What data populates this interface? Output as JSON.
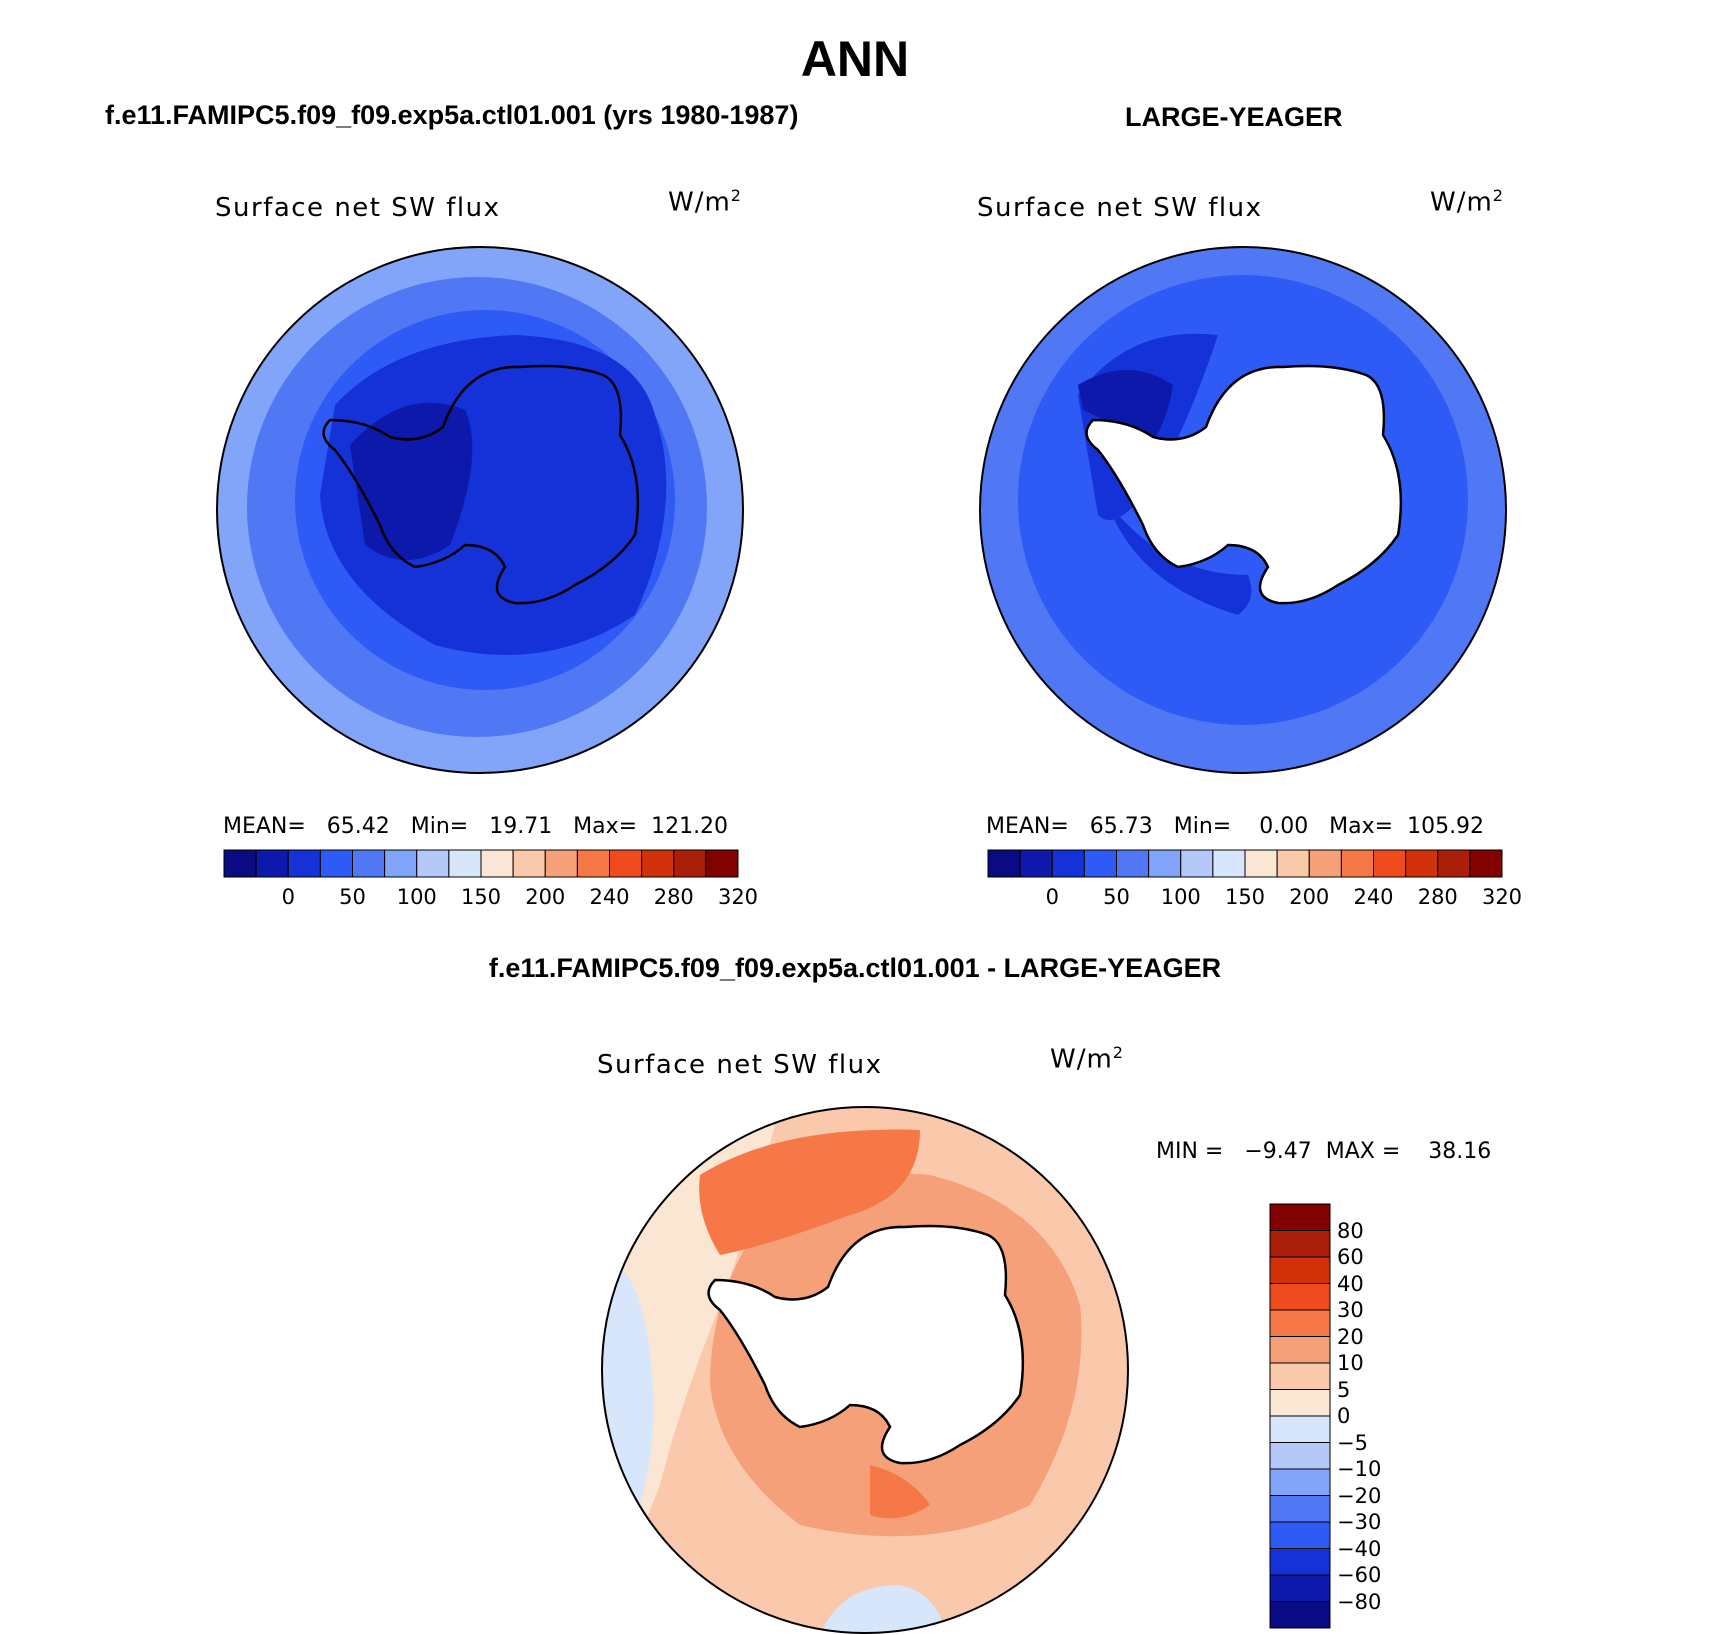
{
  "main_title": "ANN",
  "panels": [
    {
      "title": "f.e11.FAMIPC5.f09_f09.exp5a.ctl01.001 (yrs 1980-1987)",
      "variable": "Surface net SW flux",
      "units_base": "W/m",
      "units_exp": "2",
      "stats": "MEAN=   65.42   Min=   19.71   Max=  121.20",
      "colorbar_labels": [
        "0",
        "50",
        "100",
        "150",
        "200",
        "240",
        "280",
        "320"
      ]
    },
    {
      "title": "LARGE-YEAGER",
      "variable": "Surface net SW flux",
      "units_base": "W/m",
      "units_exp": "2",
      "stats": "MEAN=   65.73   Min=    0.00   Max=  105.92",
      "colorbar_labels": [
        "0",
        "50",
        "100",
        "150",
        "200",
        "240",
        "280",
        "320"
      ]
    },
    {
      "title": "f.e11.FAMIPC5.f09_f09.exp5a.ctl01.001 - LARGE-YEAGER",
      "variable": "Surface net SW flux",
      "units_base": "W/m",
      "units_exp": "2",
      "stats": "MIN =   −9.47  MAX =    38.16",
      "colorbar_labels": [
        "80",
        "60",
        "40",
        "30",
        "20",
        "10",
        "5",
        "0",
        "−5",
        "−10",
        "−20",
        "−30",
        "−40",
        "−60",
        "−80"
      ]
    }
  ],
  "colors": {
    "abs_scale": [
      "#0a0a82",
      "#0c19aa",
      "#1432d7",
      "#2e5af5",
      "#5078f5",
      "#82a5fa",
      "#b4c8fa",
      "#d7e6fa",
      "#fae6d2",
      "#fac8aa",
      "#f5a078",
      "#f57846",
      "#f04b1e",
      "#d2320a",
      "#aa1e0a",
      "#820000"
    ],
    "diff_scale": [
      "#820000",
      "#aa1e0a",
      "#d2320a",
      "#f04b1e",
      "#f57846",
      "#f5a078",
      "#fac8aa",
      "#fae6d2",
      "#d7e6fa",
      "#b4c8fa",
      "#82a5fa",
      "#5078f5",
      "#2e5af5",
      "#1432d7",
      "#0c19aa",
      "#0a0a82"
    ]
  }
}
